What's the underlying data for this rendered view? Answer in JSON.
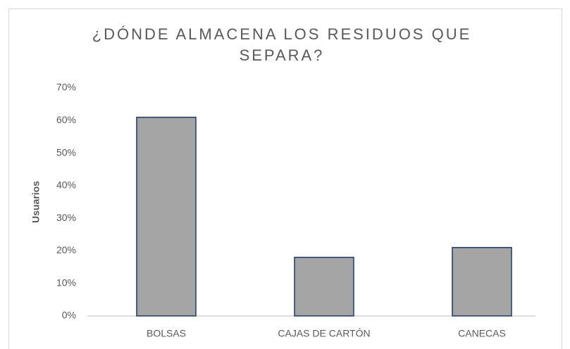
{
  "chart_data": {
    "type": "bar",
    "title": "¿DÓNDE ALMACENA LOS RESIDUOS QUE SEPARA?",
    "y_label": "Usuarios",
    "categories": [
      "BOLSAS",
      "CAJAS DE CARTÓN",
      "CANECAS"
    ],
    "values": [
      61,
      18,
      21
    ],
    "color": "#a5a5a5",
    "edge_color": "#1f3864",
    "ylim": [
      0,
      70
    ],
    "yticks": [
      {
        "value": 0,
        "label": "0%"
      },
      {
        "value": 10,
        "label": "10%"
      },
      {
        "value": 20,
        "label": "20%"
      },
      {
        "value": 30,
        "label": "30%"
      },
      {
        "value": 40,
        "label": "40%"
      },
      {
        "value": 50,
        "label": "50%"
      },
      {
        "value": 60,
        "label": "60%"
      },
      {
        "value": 70,
        "label": "70%"
      }
    ],
    "grid": false
  }
}
